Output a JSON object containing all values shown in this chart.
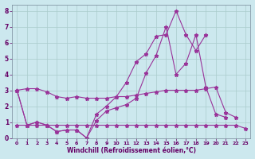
{
  "background_color": "#cce8ee",
  "grid_color": "#aacccc",
  "line_color": "#993399",
  "xlabel": "Windchill (Refroidissement éolien,°C)",
  "xlabel_color": "#660066",
  "tick_color": "#660066",
  "xlim": [
    -0.5,
    23.5
  ],
  "ylim": [
    0,
    8.4
  ],
  "xticks": [
    0,
    1,
    2,
    3,
    4,
    5,
    6,
    7,
    8,
    9,
    10,
    11,
    12,
    13,
    14,
    15,
    16,
    17,
    18,
    19,
    20,
    21,
    22,
    23
  ],
  "yticks": [
    0,
    1,
    2,
    3,
    4,
    5,
    6,
    7,
    8
  ],
  "series": [
    {
      "x": [
        0,
        1,
        2,
        3,
        4,
        5,
        6,
        7,
        8,
        9,
        10,
        11,
        12,
        13,
        14,
        15,
        16,
        17,
        18,
        19,
        20,
        21,
        22
      ],
      "y": [
        3.0,
        3.1,
        3.1,
        2.9,
        2.6,
        2.5,
        2.6,
        2.5,
        2.5,
        2.5,
        2.6,
        2.6,
        2.7,
        2.8,
        2.9,
        3.0,
        3.0,
        3.0,
        3.0,
        3.1,
        3.2,
        1.6,
        1.3
      ]
    },
    {
      "x": [
        0,
        1,
        2,
        3,
        4,
        5,
        6,
        7,
        8,
        9,
        10,
        11,
        12,
        13,
        14,
        15,
        16,
        17,
        18,
        19,
        20,
        21
      ],
      "y": [
        3.0,
        0.8,
        1.0,
        0.8,
        0.4,
        0.5,
        0.5,
        0.0,
        1.1,
        1.7,
        1.9,
        2.1,
        2.5,
        4.1,
        5.2,
        7.0,
        4.0,
        4.7,
        6.5,
        3.2,
        1.5,
        1.3
      ]
    },
    {
      "x": [
        0,
        1,
        2,
        3,
        4,
        5,
        6,
        7,
        8,
        9,
        10,
        11,
        12,
        13,
        14,
        15,
        16,
        17,
        18,
        19
      ],
      "y": [
        3.0,
        0.8,
        1.0,
        0.8,
        0.4,
        0.5,
        0.5,
        0.0,
        1.5,
        2.0,
        2.6,
        3.5,
        4.8,
        5.3,
        6.4,
        6.5,
        8.0,
        6.5,
        5.5,
        6.5
      ]
    },
    {
      "x": [
        0,
        1,
        2,
        3,
        4,
        5,
        6,
        7,
        8,
        9,
        10,
        11,
        12,
        13,
        14,
        15,
        16,
        17,
        18,
        19,
        20,
        21,
        22,
        23
      ],
      "y": [
        0.8,
        0.8,
        0.8,
        0.8,
        0.8,
        0.8,
        0.8,
        0.8,
        0.8,
        0.8,
        0.8,
        0.8,
        0.8,
        0.8,
        0.8,
        0.8,
        0.8,
        0.8,
        0.8,
        0.8,
        0.8,
        0.8,
        0.8,
        0.6
      ]
    }
  ]
}
